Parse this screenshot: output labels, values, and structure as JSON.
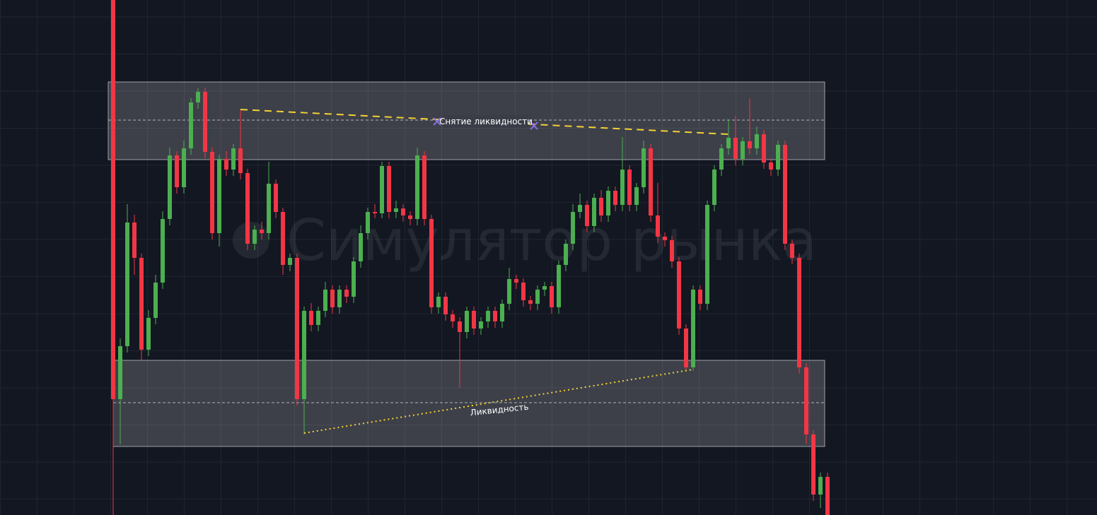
{
  "chart_data": {
    "type": "candlestick",
    "watermark": "Симулятор рынка",
    "ylim": [
      0,
      729
    ],
    "up_color": "#4caf50",
    "down_color": "#f23645",
    "grid": true,
    "open": [
      729,
      164,
      239,
      414,
      364,
      234,
      279,
      329,
      419,
      509,
      464,
      519,
      584,
      599,
      514,
      399,
      504,
      489,
      519,
      484,
      384,
      404,
      399,
      469,
      429,
      354,
      364,
      164,
      289,
      269,
      289,
      319,
      294,
      319,
      309,
      359,
      399,
      429,
      427,
      494,
      429,
      434,
      424,
      419,
      509,
      419,
      294,
      309,
      284,
      274,
      259,
      289,
      264,
      274,
      289,
      274,
      299,
      334,
      329,
      304,
      299,
      319,
      324,
      294,
      354,
      384,
      429,
      439,
      409,
      449,
      424,
      459,
      439,
      489,
      439,
      464,
      519,
      424,
      394,
      389,
      359,
      264,
      209,
      319,
      299,
      439,
      489,
      519,
      534,
      504,
      529,
      519,
      539,
      499,
      489,
      524,
      384,
      364,
      209,
      114,
      29,
      54
    ],
    "high": [
      729,
      250,
      440,
      425,
      370,
      290,
      340,
      430,
      520,
      515,
      530,
      590,
      604,
      605,
      520,
      510,
      515,
      525,
      574,
      490,
      410,
      415,
      500,
      475,
      435,
      370,
      370,
      295,
      300,
      295,
      330,
      325,
      325,
      325,
      365,
      410,
      435,
      440,
      500,
      500,
      445,
      440,
      430,
      520,
      515,
      425,
      315,
      315,
      290,
      280,
      295,
      295,
      280,
      295,
      295,
      305,
      350,
      340,
      335,
      310,
      325,
      330,
      330,
      360,
      390,
      440,
      455,
      445,
      455,
      460,
      465,
      465,
      535,
      495,
      470,
      530,
      525,
      470,
      400,
      395,
      365,
      270,
      325,
      325,
      445,
      495,
      525,
      560,
      565,
      535,
      590,
      550,
      545,
      505,
      530,
      530,
      390,
      370,
      215,
      120,
      60,
      60
    ],
    "low": [
      0,
      100,
      230,
      340,
      220,
      225,
      270,
      320,
      410,
      455,
      455,
      510,
      575,
      505,
      390,
      380,
      480,
      480,
      475,
      375,
      375,
      390,
      390,
      420,
      340,
      345,
      155,
      114,
      260,
      260,
      280,
      285,
      285,
      300,
      300,
      350,
      390,
      420,
      420,
      420,
      420,
      415,
      410,
      410,
      410,
      285,
      285,
      275,
      265,
      180,
      250,
      255,
      255,
      265,
      265,
      265,
      290,
      320,
      295,
      290,
      290,
      310,
      285,
      285,
      345,
      375,
      420,
      400,
      400,
      415,
      415,
      430,
      430,
      430,
      430,
      455,
      415,
      385,
      380,
      350,
      255,
      204,
      204,
      290,
      290,
      430,
      480,
      510,
      495,
      495,
      510,
      510,
      490,
      480,
      480,
      375,
      355,
      200,
      100,
      20,
      10,
      0
    ],
    "close": [
      164,
      239,
      414,
      364,
      234,
      279,
      329,
      419,
      509,
      464,
      519,
      584,
      599,
      514,
      399,
      504,
      489,
      519,
      484,
      384,
      404,
      399,
      469,
      429,
      354,
      364,
      164,
      289,
      269,
      289,
      319,
      294,
      319,
      309,
      359,
      399,
      429,
      427,
      494,
      429,
      434,
      424,
      419,
      509,
      419,
      294,
      309,
      284,
      274,
      259,
      289,
      264,
      274,
      289,
      274,
      299,
      334,
      329,
      304,
      299,
      319,
      324,
      294,
      354,
      384,
      429,
      439,
      409,
      449,
      424,
      459,
      439,
      489,
      439,
      464,
      519,
      424,
      394,
      389,
      359,
      264,
      209,
      319,
      299,
      439,
      489,
      519,
      534,
      504,
      529,
      519,
      539,
      499,
      489,
      524,
      384,
      364,
      209,
      114,
      29,
      54,
      0
    ],
    "zones": [
      {
        "top": 613,
        "bottom": 503,
        "mid": 559
      },
      {
        "top": 219,
        "bottom": 97,
        "mid": 159
      }
    ],
    "lines": [
      {
        "from_index": 18,
        "from": 574,
        "to_index": 87,
        "to": 539,
        "color": "#f5d033",
        "style": "dashed"
      },
      {
        "from_index": 27,
        "from": 116,
        "to_index": 82,
        "to": 206,
        "color": "#f5d033",
        "style": "dotted"
      }
    ],
    "annotations": [
      {
        "text": "Снятие ликвидности",
        "index": 52.7,
        "y": 557,
        "markers": [
          45.8,
          59.5
        ],
        "marker_color": "#8a6fdf"
      },
      {
        "text": "Ликвидность",
        "index": 54.6,
        "y": 149
      }
    ]
  }
}
